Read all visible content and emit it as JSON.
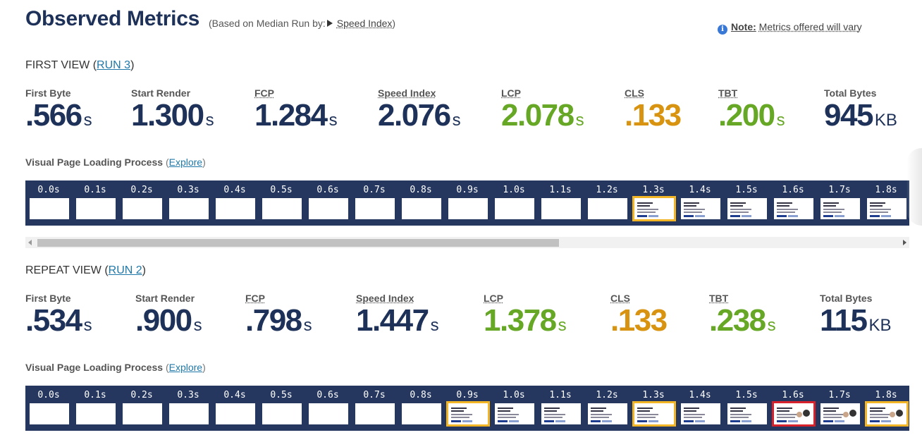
{
  "header": {
    "title": "Observed Metrics",
    "subtitle_prefix": "(Based on Median Run by:",
    "median_metric": "Speed Index",
    "subtitle_suffix": ")",
    "note_label": "Note:",
    "note_text": "Metrics offered will vary",
    "info_icon": "i"
  },
  "first_view": {
    "heading_prefix": "FIRST VIEW (",
    "run_link": "RUN 3",
    "heading_suffix": ")",
    "metrics": [
      {
        "label": "First Byte",
        "value": ".566",
        "unit": "s",
        "color": "#1e3158"
      },
      {
        "label": "Start Render",
        "value": "1.300",
        "unit": "s",
        "color": "#1e3158"
      },
      {
        "label": "FCP",
        "value": "1.284",
        "unit": "s",
        "color": "#1e3158"
      },
      {
        "label": "Speed Index",
        "value": "2.076",
        "unit": "s",
        "color": "#1e3158"
      },
      {
        "label": "LCP",
        "value": "2.078",
        "unit": "s",
        "color": "#67a726"
      },
      {
        "label": "CLS",
        "value": ".133",
        "unit": "",
        "color": "#d89411"
      },
      {
        "label": "TBT",
        "value": ".200",
        "unit": "s",
        "color": "#67a726"
      },
      {
        "label": "Total Bytes",
        "value": "945",
        "unit": "KB",
        "color": "#1e3158"
      }
    ],
    "vpl_label": "Visual Page Loading Process",
    "explore_link": "Explore",
    "frames": [
      "0.0s",
      "0.1s",
      "0.2s",
      "0.3s",
      "0.4s",
      "0.5s",
      "0.6s",
      "0.7s",
      "0.8s",
      "0.9s",
      "1.0s",
      "1.1s",
      "1.2s",
      "1.3s",
      "1.4s",
      "1.5s",
      "1.6s",
      "1.7s",
      "1.8s"
    ]
  },
  "repeat_view": {
    "heading_prefix": "REPEAT VIEW (",
    "run_link": "RUN 2",
    "heading_suffix": ")",
    "metrics": [
      {
        "label": "First Byte",
        "value": ".534",
        "unit": "s",
        "color": "#1e3158"
      },
      {
        "label": "Start Render",
        "value": ".900",
        "unit": "s",
        "color": "#1e3158"
      },
      {
        "label": "FCP",
        "value": ".798",
        "unit": "s",
        "color": "#1e3158"
      },
      {
        "label": "Speed Index",
        "value": "1.447",
        "unit": "s",
        "color": "#1e3158"
      },
      {
        "label": "LCP",
        "value": "1.378",
        "unit": "s",
        "color": "#67a726"
      },
      {
        "label": "CLS",
        "value": ".133",
        "unit": "",
        "color": "#d89411"
      },
      {
        "label": "TBT",
        "value": ".238",
        "unit": "s",
        "color": "#67a726"
      },
      {
        "label": "Total Bytes",
        "value": "115",
        "unit": "KB",
        "color": "#1e3158"
      }
    ],
    "vpl_label": "Visual Page Loading Process",
    "explore_link": "Explore",
    "frames": [
      "0.0s",
      "0.1s",
      "0.2s",
      "0.3s",
      "0.4s",
      "0.5s",
      "0.6s",
      "0.7s",
      "0.8s",
      "0.9s",
      "1.0s",
      "1.1s",
      "1.2s",
      "1.3s",
      "1.4s",
      "1.5s",
      "1.6s",
      "1.7s",
      "1.8s"
    ]
  },
  "colors": {
    "filmstrip_bg": "#25375f",
    "highlight_visual_change": "#f2b526",
    "highlight_lcp": "#d8222b"
  }
}
